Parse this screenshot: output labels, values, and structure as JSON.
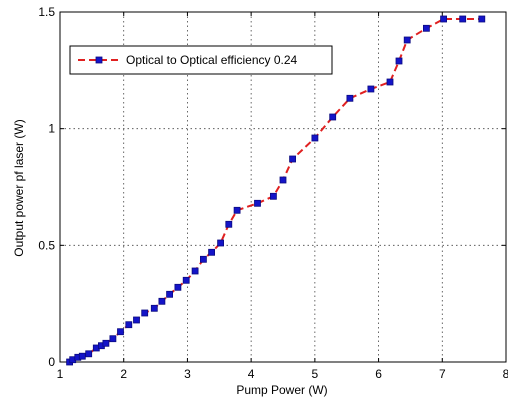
{
  "chart_data": {
    "type": "line",
    "title": "",
    "xlabel": "Pump Power (W)",
    "ylabel": "Output power pf laser (W)",
    "xlim": [
      1,
      8
    ],
    "ylim": [
      0,
      1.5
    ],
    "x_ticks": [
      1,
      2,
      3,
      4,
      5,
      6,
      7,
      8
    ],
    "y_ticks": [
      0,
      0.5,
      1,
      1.5
    ],
    "x_tick_labels": [
      "1",
      "2",
      "3",
      "4",
      "5",
      "6",
      "7",
      "8"
    ],
    "y_tick_labels": [
      "0",
      "0.5",
      "1",
      "1.5"
    ],
    "grid": true,
    "legend_position": "top-left",
    "series": [
      {
        "name": "Optical to Optical efficiency 0.24",
        "line_color": "#e02020",
        "marker_color": "#1414c8",
        "line_style": "dashed",
        "marker": "square",
        "x": [
          1.15,
          1.2,
          1.28,
          1.35,
          1.45,
          1.57,
          1.65,
          1.72,
          1.83,
          1.95,
          2.08,
          2.2,
          2.33,
          2.48,
          2.6,
          2.72,
          2.85,
          2.98,
          3.12,
          3.25,
          3.38,
          3.52,
          3.65,
          3.78,
          4.1,
          4.35,
          4.5,
          4.65,
          5.0,
          5.28,
          5.55,
          5.88,
          6.18,
          6.32,
          6.45,
          6.75,
          7.02,
          7.32,
          7.62
        ],
        "y": [
          0.0,
          0.01,
          0.02,
          0.025,
          0.035,
          0.06,
          0.07,
          0.08,
          0.1,
          0.13,
          0.16,
          0.18,
          0.21,
          0.23,
          0.26,
          0.29,
          0.32,
          0.35,
          0.39,
          0.44,
          0.47,
          0.51,
          0.59,
          0.65,
          0.68,
          0.71,
          0.78,
          0.87,
          0.96,
          1.05,
          1.13,
          1.17,
          1.2,
          1.29,
          1.38,
          1.43,
          1.47,
          1.47,
          1.47
        ]
      }
    ]
  }
}
